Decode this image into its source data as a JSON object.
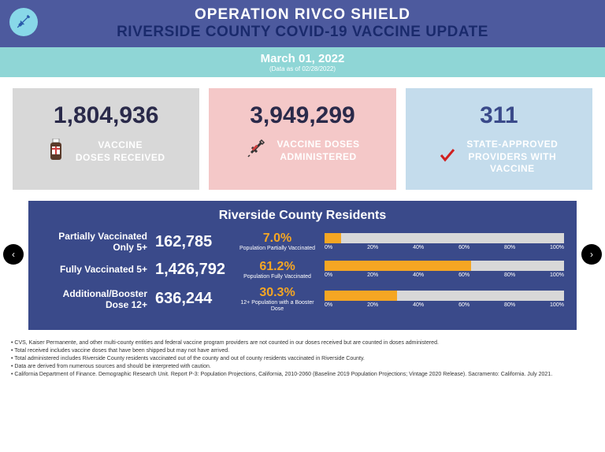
{
  "header": {
    "title1": "OPERATION RIVCO SHIELD",
    "title2": "RIVERSIDE COUNTY COVID-19 VACCINE UPDATE"
  },
  "date": {
    "main": "March 01, 2022",
    "sub": "(Data as of 02/28/2022)"
  },
  "stats": {
    "received": {
      "number": "1,804,936",
      "label1": "VACCINE",
      "label2": "DOSES RECEIVED"
    },
    "administered": {
      "number": "3,949,299",
      "label1": "VACCINE DOSES",
      "label2": "ADMINISTERED"
    },
    "providers": {
      "number": "311",
      "label1": "STATE-APPROVED",
      "label2": "PROVIDERS WITH",
      "label3": "VACCINE"
    }
  },
  "residents": {
    "title": "Riverside County Residents",
    "rows": [
      {
        "label": "Partially Vaccinated Only 5+",
        "count": "162,785",
        "pct": "7.0%",
        "pct_sub": "Population Partially Vaccinated",
        "bar_pct": 7.0
      },
      {
        "label": "Fully Vaccinated 5+",
        "count": "1,426,792",
        "pct": "61.2%",
        "pct_sub": "Population Fully Vaccinated",
        "bar_pct": 61.2
      },
      {
        "label": "Additional/Booster Dose 12+",
        "count": "636,244",
        "pct": "30.3%",
        "pct_sub": "12+ Population with a Booster Dose",
        "bar_pct": 30.3
      }
    ],
    "ticks": [
      "0%",
      "20%",
      "40%",
      "60%",
      "80%",
      "100%"
    ]
  },
  "footnotes": [
    "• CVS, Kaiser Permanente, and other multi-county entities and federal vaccine program providers are not counted in our doses received but are counted in doses administered.",
    "• Total received includes vaccine doses that have been shipped but may not have arrived.",
    "• Total administered includes Riverside County residents vaccinated out of the county and out of county residents vaccinated in Riverside County.",
    "• Data are derived from numerous sources and should be interpreted with caution.",
    "• California Department of Finance. Demographic Research Unit. Report P-3: Population Projections, California, 2010-2060 (Baseline 2019 Population Projections; Vintage 2020 Release). Sacramento: California. July 2021."
  ],
  "colors": {
    "header_bg": "#4d5a9e",
    "date_bg": "#8fd6d6",
    "card_gray": "#d8d8d8",
    "card_pink": "#f4c8c8",
    "card_blue": "#c4dcec",
    "panel_bg": "#3a4a8a",
    "bar_fill": "#f5a623",
    "bar_track": "#d8d8d8"
  }
}
